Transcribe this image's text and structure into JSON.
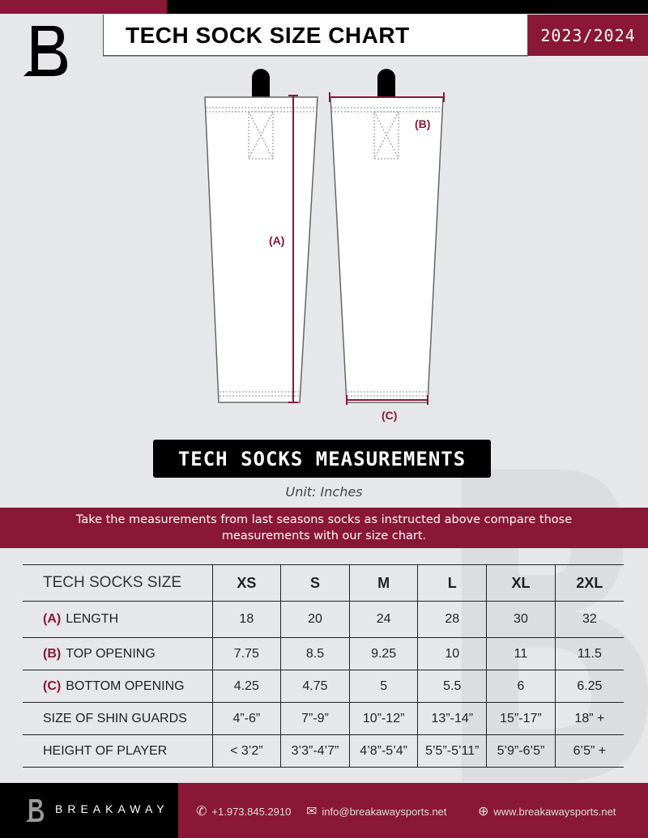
{
  "header": {
    "title": "TECH SOCK SIZE CHART",
    "season": "2023/2024",
    "logo_letter": "B"
  },
  "diagram": {
    "label_a": "(A)",
    "label_b": "(B)",
    "label_c": "(C)"
  },
  "section": {
    "title": "TECH SOCKS MEASUREMENTS",
    "unit": "Unit: Inches",
    "instructions": "Take the measurements from last seasons socks as instructed above compare those measurements  with our size chart."
  },
  "table": {
    "header": [
      "TECH SOCKS SIZE",
      "XS",
      "S",
      "M",
      "L",
      "XL",
      "2XL"
    ],
    "rows": [
      {
        "key": "(A)",
        "label": "LENGTH",
        "values": [
          "18",
          "20",
          "24",
          "28",
          "30",
          "32"
        ]
      },
      {
        "key": "(B)",
        "label": "TOP OPENING",
        "values": [
          "7.75",
          "8.5",
          "9.25",
          "10",
          "11",
          "11.5"
        ]
      },
      {
        "key": "(C)",
        "label": "BOTTOM OPENING",
        "values": [
          "4.25",
          "4.75",
          "5",
          "5.5",
          "6",
          "6.25"
        ]
      },
      {
        "key": "",
        "label": "SIZE OF SHIN GUARDS",
        "values": [
          "4”-6”",
          "7”-9”",
          "10”-12”",
          "13”-14”",
          "15”-17”",
          "18” +"
        ]
      },
      {
        "key": "",
        "label": "HEIGHT OF PLAYER",
        "values": [
          "< 3’2”",
          "3’3”-4’7”",
          "4’8”-5’4”",
          "5’5”-5’11”",
          "5’9”-6’5”",
          "6’5” +"
        ]
      }
    ]
  },
  "footer": {
    "brand": "BREAKAWAY",
    "phone": "+1.973.845.2910",
    "email": "info@breakawaysports.net",
    "website": "www.breakawaysports.net"
  },
  "colors": {
    "accent": "#8a1737",
    "background": "#e6e7e8"
  }
}
